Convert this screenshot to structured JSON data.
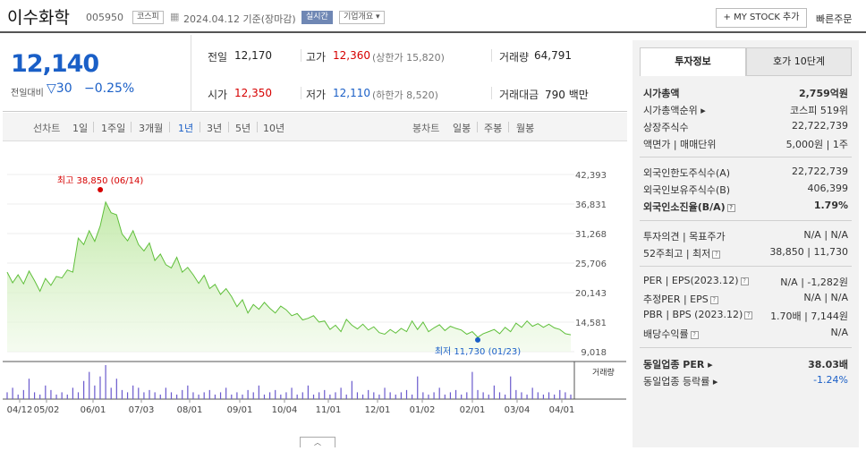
{
  "header": {
    "name": "이수화학",
    "code": "005950",
    "market": "코스피",
    "date_text": "2024.04.12 기준(장마감)",
    "live_label": "실시간",
    "company_menu": "기업개요 ▾",
    "mystock_label": "+ MY STOCK 추가",
    "quick_order": "빠른주문"
  },
  "quote": {
    "price": "12,140",
    "change_label": "전일대비",
    "change_arrow": "▽",
    "change": "30",
    "change_pct": "−0.25%",
    "prev_label": "전일",
    "prev": "12,170",
    "high_label": "고가",
    "high": "12,360",
    "upper_limit": "(상한가 15,820)",
    "volume_label": "거래량",
    "volume": "64,791",
    "open_label": "시가",
    "open": "12,350",
    "low_label": "저가",
    "low": "12,110",
    "lower_limit": "(하한가 8,520)",
    "amount_label": "거래대금",
    "amount": "790 백만"
  },
  "periods": {
    "line_label": "선차트",
    "line_opts": [
      "1일",
      "1주일",
      "3개월",
      "1년",
      "3년",
      "5년",
      "10년"
    ],
    "active": "1년",
    "candle_label": "봉차트",
    "candle_opts": [
      "일봉",
      "주봉",
      "월봉"
    ]
  },
  "chart_data": {
    "type": "area",
    "y_ticks": [
      "42,393",
      "36,831",
      "31,268",
      "25,706",
      "20,143",
      "14,581",
      "9,018"
    ],
    "ylim": [
      9018,
      42393
    ],
    "x_ticks": [
      "04/12",
      "05/02",
      "06/01",
      "07/03",
      "08/01",
      "09/01",
      "10/04",
      "11/01",
      "12/01",
      "01/02",
      "02/01",
      "03/04",
      "04/01"
    ],
    "high_annotation": "최고 38,850 (06/14)",
    "low_annotation": "최저 11,730 (01/23)",
    "volume_legend": "거래량",
    "series": [
      {
        "values": [
          24000,
          22000,
          23500,
          21800,
          24200,
          22400,
          20400,
          22800,
          21500,
          23200,
          22900,
          24400,
          24000,
          30400,
          29200,
          31800,
          29800,
          32700,
          37200,
          35200,
          34800,
          31200,
          29900,
          31800,
          29200,
          28000,
          29500,
          26200,
          27400,
          25400,
          24800,
          26800,
          24000,
          24900,
          23500,
          21900,
          23400,
          20900,
          21700,
          19800,
          20900,
          19400,
          17500,
          18800,
          16300,
          17900,
          17000,
          18300,
          17200,
          16300,
          17600,
          16900,
          15800,
          16200,
          15000,
          15300,
          15800,
          14600,
          14800,
          13200,
          14000,
          12800,
          15100,
          14000,
          13300,
          14200,
          13100,
          13700,
          12600,
          12300,
          13200,
          12500,
          13400,
          12800,
          14800,
          13200,
          14600,
          12800,
          13500,
          14100,
          13000,
          13800,
          13400,
          13100,
          12300,
          12800,
          11730,
          12400,
          12800,
          13200,
          12400,
          13600,
          12800,
          14400,
          13600,
          14800,
          13800,
          14300,
          13600,
          14200,
          13500,
          13200,
          12400,
          12200
        ],
        "volume": [
          3,
          5,
          2,
          4,
          9,
          3,
          2,
          6,
          4,
          2,
          3,
          2,
          5,
          3,
          8,
          12,
          6,
          10,
          15,
          5,
          9,
          4,
          3,
          6,
          5,
          3,
          4,
          3,
          2,
          5,
          3,
          2,
          4,
          6,
          3,
          2,
          3,
          4,
          2,
          3,
          5,
          2,
          3,
          2,
          4,
          3,
          6,
          2,
          3,
          4,
          2,
          3,
          5,
          2,
          3,
          6,
          2,
          3,
          4,
          2,
          3,
          5,
          2,
          8,
          3,
          2,
          4,
          3,
          2,
          5,
          3,
          2,
          3,
          4,
          2,
          10,
          3,
          2,
          3,
          5,
          2,
          3,
          4,
          2,
          3,
          12,
          4,
          3,
          2,
          6,
          3,
          2,
          10,
          4,
          3,
          2,
          5,
          3,
          2,
          3,
          2,
          4,
          3,
          2
        ]
      }
    ]
  },
  "invest": {
    "tab_info": "투자정보",
    "tab_hoga": "호가 10단계",
    "rows": [
      {
        "l": "시가총액",
        "v": "2,759억원",
        "bold": true
      },
      {
        "l": "시가총액순위 ▸",
        "v": "코스피 519위"
      },
      {
        "l": "상장주식수",
        "v": "22,722,739"
      },
      {
        "l": "액면가 | 매매단위",
        "v": "5,000원 | 1주"
      },
      {
        "l": "외국인한도주식수(A)",
        "v": "22,722,739"
      },
      {
        "l": "외국인보유주식수(B)",
        "v": "406,399"
      },
      {
        "l": "외국인소진율(B/A)",
        "v": "1.79%",
        "bold": true,
        "q": true
      },
      {
        "l": "투자의견 | 목표주가",
        "v": "N/A | N/A"
      },
      {
        "l": "52주최고 | 최저",
        "v": "38,850 | 11,730",
        "q": true
      },
      {
        "l": "PER | EPS(2023.12)",
        "v": "N/A | -1,282원",
        "q": true
      },
      {
        "l": "추정PER | EPS",
        "v": "N/A | N/A",
        "q": true
      },
      {
        "l": "PBR | BPS (2023.12)",
        "v": "1.70배 | 7,144원",
        "q": true
      },
      {
        "l": "배당수익률",
        "v": "N/A",
        "q": true
      },
      {
        "l": "동일업종 PER ▸",
        "v": "38.03배",
        "bold": true
      },
      {
        "l": "동일업종 등락률 ▸",
        "v": "-1.24%",
        "blue": true
      }
    ]
  }
}
